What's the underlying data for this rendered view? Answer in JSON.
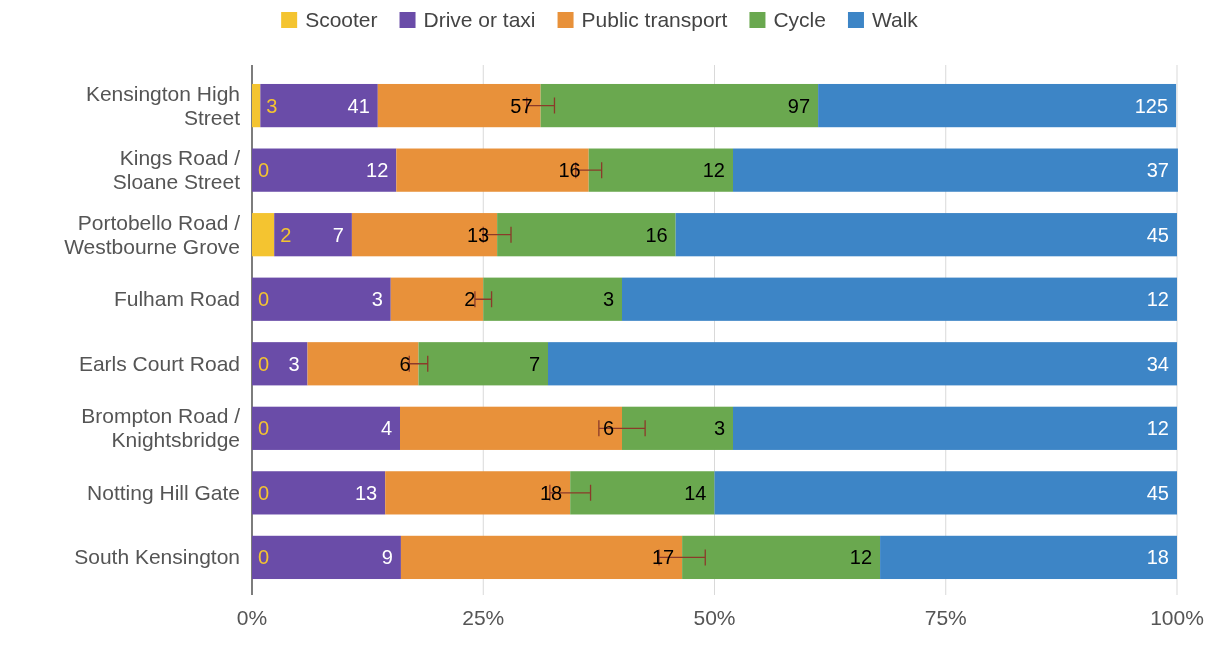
{
  "chart_data": {
    "type": "bar",
    "orientation": "horizontal",
    "stacked": true,
    "categories": [
      "Kensington High Street",
      "Kings Road / Sloane Street",
      "Portobello Road / Westbourne Grove",
      "Fulham Road",
      "Earls Court Road",
      "Brompton Road / Knightsbridge",
      "Notting Hill Gate",
      "South Kensington"
    ],
    "series": [
      {
        "name": "Scooter",
        "color": "#f4c430",
        "values": [
          0.9,
          0,
          2.4,
          0,
          0,
          0,
          0,
          0
        ]
      },
      {
        "name": "Drive or taxi",
        "color": "#6a4ca8",
        "values": [
          12.7,
          15.6,
          8.4,
          15,
          6,
          16,
          14.4,
          16.1
        ]
      },
      {
        "name": "Public transport",
        "color": "#e8913a",
        "values": [
          17.6,
          20.8,
          15.7,
          10,
          12,
          24,
          20,
          30.4
        ],
        "errors": [
          1.5,
          1.4,
          1.5,
          0.9,
          1,
          2.5,
          2.2,
          2.5
        ]
      },
      {
        "name": "Cycle",
        "color": "#6aa84f",
        "values": [
          30.0,
          15.6,
          19.3,
          15,
          14,
          12,
          15.6,
          21.4
        ]
      },
      {
        "name": "Walk",
        "color": "#3d85c6",
        "values": [
          38.7,
          48.1,
          54.2,
          60,
          68,
          48,
          50,
          32.1
        ]
      }
    ],
    "annotations": [
      {
        "text": "3",
        "x": 0.9,
        "y": "Kensington High Street"
      },
      {
        "text": "41",
        "x": 13.6,
        "y": "Kensington High Street"
      },
      {
        "text": "57",
        "x": 31.2,
        "y": "Kensington High Street"
      },
      {
        "text": "97",
        "x": 61.2,
        "y": "Kensington High Street"
      },
      {
        "text": "125",
        "x": 99.9,
        "y": "Kensington High Street"
      },
      {
        "text": "0",
        "x": 0,
        "y": "Kings Road / Sloane Street"
      },
      {
        "text": "12",
        "x": 15.6,
        "y": "Kings Road / Sloane Street"
      },
      {
        "text": "16",
        "x": 36.4,
        "y": "Kings Road / Sloane Street"
      },
      {
        "text": "12",
        "x": 52,
        "y": "Kings Road / Sloane Street"
      },
      {
        "text": "37",
        "x": 100,
        "y": "Kings Road / Sloane Street"
      },
      {
        "text": "2",
        "x": 2.4,
        "y": "Portobello Road / Westbourne Grove"
      },
      {
        "text": "7",
        "x": 10.8,
        "y": "Portobello Road / Westbourne Grove"
      },
      {
        "text": "13",
        "x": 26.5,
        "y": "Portobello Road / Westbourne Grove"
      },
      {
        "text": "16",
        "x": 45.8,
        "y": "Portobello Road / Westbourne Grove"
      },
      {
        "text": "45",
        "x": 100,
        "y": "Portobello Road / Westbourne Grove"
      },
      {
        "text": "0",
        "x": 0,
        "y": "Fulham Road"
      },
      {
        "text": "3",
        "x": 15,
        "y": "Fulham Road"
      },
      {
        "text": "2",
        "x": 25,
        "y": "Fulham Road"
      },
      {
        "text": "3",
        "x": 40,
        "y": "Fulham Road"
      },
      {
        "text": "12",
        "x": 100,
        "y": "Fulham Road"
      },
      {
        "text": "0",
        "x": 0,
        "y": "Earls Court Road"
      },
      {
        "text": "3",
        "x": 6,
        "y": "Earls Court Road"
      },
      {
        "text": "6",
        "x": 18,
        "y": "Earls Court Road"
      },
      {
        "text": "7",
        "x": 32,
        "y": "Earls Court Road"
      },
      {
        "text": "34",
        "x": 100,
        "y": "Earls Court Road"
      },
      {
        "text": "0",
        "x": 0,
        "y": "Brompton Road / Knightsbridge"
      },
      {
        "text": "4",
        "x": 16,
        "y": "Brompton Road / Knightsbridge"
      },
      {
        "text": "6",
        "x": 40,
        "y": "Brompton Road / Knightsbridge"
      },
      {
        "text": "3",
        "x": 52,
        "y": "Brompton Road / Knightsbridge"
      },
      {
        "text": "12",
        "x": 100,
        "y": "Brompton Road / Knightsbridge"
      },
      {
        "text": "0",
        "x": 0,
        "y": "Notting Hill Gate"
      },
      {
        "text": "13",
        "x": 14.4,
        "y": "Notting Hill Gate"
      },
      {
        "text": "18",
        "x": 34.4,
        "y": "Notting Hill Gate"
      },
      {
        "text": "14",
        "x": 50,
        "y": "Notting Hill Gate"
      },
      {
        "text": "45",
        "x": 100,
        "y": "Notting Hill Gate"
      },
      {
        "text": "0",
        "x": 0,
        "y": "South Kensington"
      },
      {
        "text": "9",
        "x": 16.1,
        "y": "South Kensington"
      },
      {
        "text": "17",
        "x": 46.5,
        "y": "South Kensington"
      },
      {
        "text": "12",
        "x": 67.9,
        "y": "South Kensington"
      },
      {
        "text": "18",
        "x": 100,
        "y": "South Kensington"
      }
    ],
    "xlim": [
      0,
      100
    ],
    "xticks": [
      {
        "value": 0,
        "label": "0%"
      },
      {
        "value": 25,
        "label": "25%"
      },
      {
        "value": 50,
        "label": "50%"
      },
      {
        "value": 75,
        "label": "75%"
      },
      {
        "value": 100,
        "label": "100%"
      }
    ],
    "grid": "x",
    "legend": "top"
  }
}
